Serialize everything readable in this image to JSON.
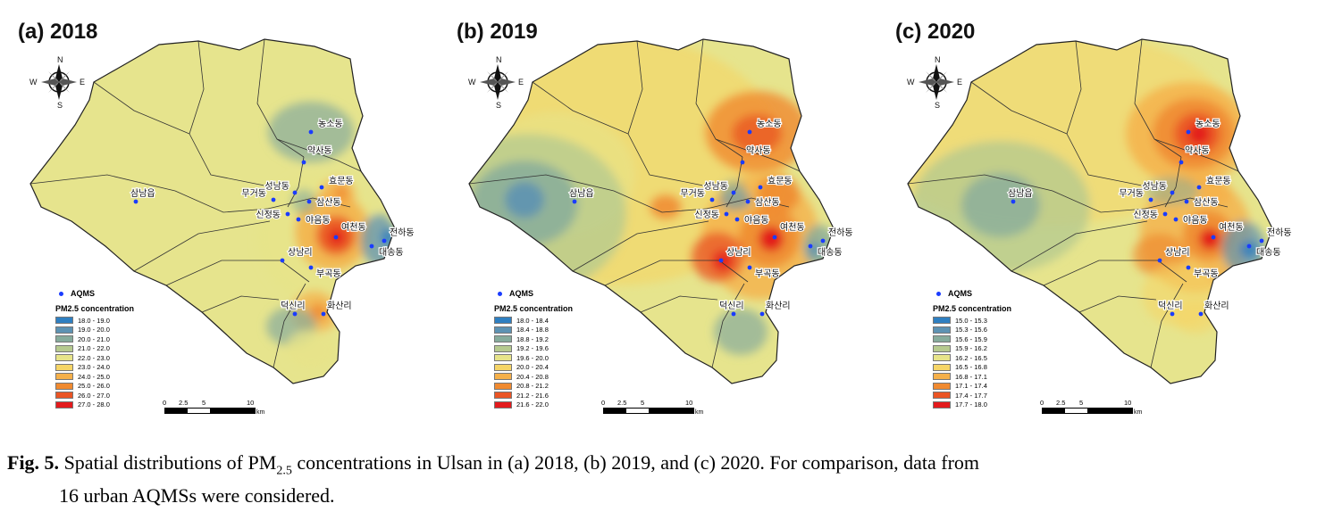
{
  "panels": [
    {
      "title": "(a) 2018",
      "legend": {
        "aqms_label": "AQMS",
        "title": "PM2.5 concentration",
        "bins": [
          "18.0 - 19.0",
          "19.0 - 20.0",
          "20.0 - 21.0",
          "21.0 - 22.0",
          "22.0 - 23.0",
          "23.0 - 24.0",
          "24.0 - 25.0",
          "25.0 - 26.0",
          "26.0 - 27.0",
          "27.0 - 28.0"
        ]
      },
      "scale": {
        "ticks": [
          "0",
          "2.5",
          "5",
          "10"
        ],
        "unit": "km"
      }
    },
    {
      "title": "(b) 2019",
      "legend": {
        "aqms_label": "AQMS",
        "title": "PM2.5 concentration",
        "bins": [
          "18.0 - 18.4",
          "18.4 - 18.8",
          "18.8 - 19.2",
          "19.2 - 19.6",
          "19.6 - 20.0",
          "20.0 - 20.4",
          "20.4 - 20.8",
          "20.8 - 21.2",
          "21.2 - 21.6",
          "21.6 - 22.0"
        ]
      },
      "scale": {
        "ticks": [
          "0",
          "2.5",
          "5",
          "10"
        ],
        "unit": "km"
      }
    },
    {
      "title": "(c) 2020",
      "legend": {
        "aqms_label": "AQMS",
        "title": "PM2.5 concentration",
        "bins": [
          "15.0 - 15.3",
          "15.3 - 15.6",
          "15.6 - 15.9",
          "15.9 - 16.2",
          "16.2 - 16.5",
          "16.5 - 16.8",
          "16.8 - 17.1",
          "17.1 - 17.4",
          "17.4 - 17.7",
          "17.7 - 18.0"
        ]
      },
      "scale": {
        "ticks": [
          "0",
          "2.5",
          "5",
          "10"
        ],
        "unit": "km"
      }
    }
  ],
  "legend_colors": [
    "#2f7fc1",
    "#5d92b3",
    "#86ab9c",
    "#b6ca8f",
    "#e7e48a",
    "#f5d567",
    "#f5b04a",
    "#f08a30",
    "#ea5424",
    "#e31a1c"
  ],
  "compass": {
    "n": "N",
    "s": "S",
    "e": "E",
    "w": "W"
  },
  "stations": [
    {
      "name": "농소동"
    },
    {
      "name": "약사동"
    },
    {
      "name": "효문동"
    },
    {
      "name": "성남동"
    },
    {
      "name": "무거동"
    },
    {
      "name": "삼산동"
    },
    {
      "name": "신정동"
    },
    {
      "name": "야음동"
    },
    {
      "name": "여천동"
    },
    {
      "name": "전하동"
    },
    {
      "name": "대송동"
    },
    {
      "name": "상남리"
    },
    {
      "name": "부곡동"
    },
    {
      "name": "삼남읍"
    },
    {
      "name": "덕신리"
    },
    {
      "name": "화산리"
    }
  ],
  "caption": {
    "fig_label": "Fig. 5.",
    "text_pre": " Spatial distributions of PM",
    "text_sub": "2.5",
    "text_post_line1": " concentrations in Ulsan in (a) 2018, (b) 2019, and (c) 2020. For comparison, data from",
    "text_line2": "16 urban AQMSs were considered."
  }
}
